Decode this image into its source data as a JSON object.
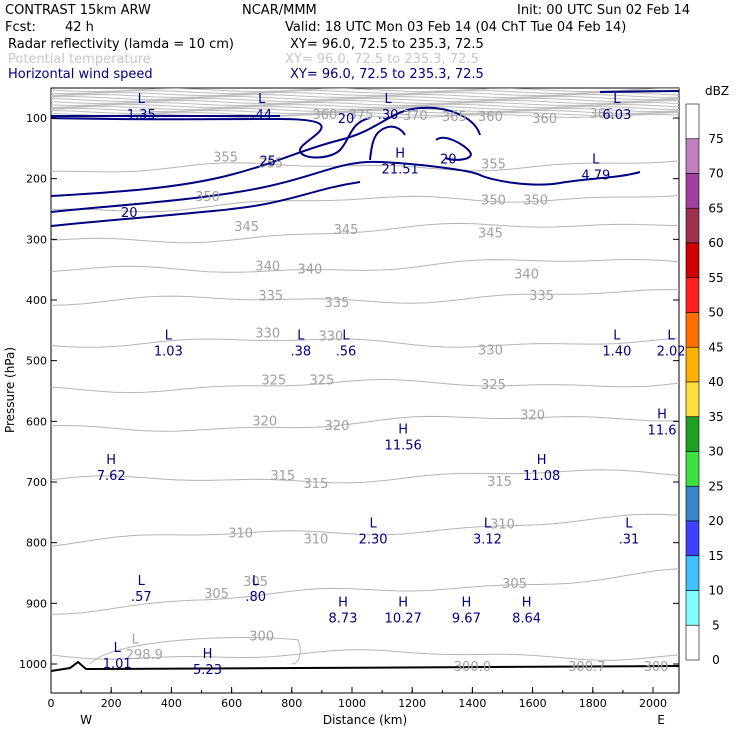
{
  "header": {
    "model": "CONTRAST 15km ARW",
    "org": "NCAR/MMM",
    "init": "Init: 00 UTC Sun 02 Feb 14",
    "fcst_label": "Fcst:",
    "fcst_value": "42 h",
    "valid": "Valid: 18 UTC Mon 03 Feb 14 (04 ChT Tue 04 Feb 14)",
    "fields": [
      {
        "name": "Radar reflectivity (lamda = 10 cm)",
        "xy": "XY=  96.0, 72.5 to 235.3, 72.5",
        "color": "#000000"
      },
      {
        "name": "Potential temperature",
        "xy": "XY=  96.0, 72.5 to 235.3, 72.5",
        "color": "#c8c8c8"
      },
      {
        "name": "Horizontal wind speed",
        "xy": "XY=  96.0, 72.5 to 235.3, 72.5",
        "color": "#000080"
      }
    ]
  },
  "chart_data": {
    "type": "cross-section",
    "xlabel": "Distance (km)",
    "ylabel": "Pressure (hPa)",
    "x_ticks": [
      0,
      200,
      400,
      600,
      800,
      1000,
      1200,
      1400,
      1600,
      1800,
      2000
    ],
    "y_ticks": [
      100,
      200,
      300,
      400,
      500,
      600,
      700,
      800,
      900,
      1000
    ],
    "xlim": [
      0,
      2080
    ],
    "ylim": [
      1050,
      50
    ],
    "ends": {
      "left": "W",
      "right": "E"
    },
    "theta_contours": [
      {
        "value": "300",
        "p_left": 985,
        "p_right": 985
      },
      {
        "value": "305",
        "p_left": 910,
        "p_right": 850
      },
      {
        "value": "310",
        "p_left": 800,
        "p_right": 760
      },
      {
        "value": "315",
        "p_left": 700,
        "p_right": 685
      },
      {
        "value": "320",
        "p_left": 615,
        "p_right": 590
      },
      {
        "value": "325",
        "p_left": 545,
        "p_right": 535
      },
      {
        "value": "330",
        "p_left": 470,
        "p_right": 470
      },
      {
        "value": "335",
        "p_left": 405,
        "p_right": 390
      },
      {
        "value": "340",
        "p_left": 355,
        "p_right": 335
      },
      {
        "value": "345",
        "p_left": 305,
        "p_right": 270
      },
      {
        "value": "350",
        "p_left": 250,
        "p_right": 225
      },
      {
        "value": "355",
        "p_left": 185,
        "p_right": 175
      }
    ],
    "theta_labels": [
      {
        "text": "300",
        "x": 700,
        "p": 955
      },
      {
        "text": "305",
        "x": 680,
        "p": 865
      },
      {
        "text": "305",
        "x": 550,
        "p": 885
      },
      {
        "text": "305",
        "x": 1540,
        "p": 868
      },
      {
        "text": "310",
        "x": 630,
        "p": 785
      },
      {
        "text": "310",
        "x": 880,
        "p": 795
      },
      {
        "text": "310",
        "x": 1500,
        "p": 770
      },
      {
        "text": "315",
        "x": 770,
        "p": 690
      },
      {
        "text": "315",
        "x": 880,
        "p": 703
      },
      {
        "text": "315",
        "x": 1490,
        "p": 700
      },
      {
        "text": "320",
        "x": 710,
        "p": 600
      },
      {
        "text": "320",
        "x": 950,
        "p": 608
      },
      {
        "text": "320",
        "x": 1600,
        "p": 590
      },
      {
        "text": "325",
        "x": 740,
        "p": 533
      },
      {
        "text": "325",
        "x": 900,
        "p": 533
      },
      {
        "text": "325",
        "x": 1470,
        "p": 540
      },
      {
        "text": "330",
        "x": 720,
        "p": 455
      },
      {
        "text": "330",
        "x": 930,
        "p": 460
      },
      {
        "text": "330",
        "x": 1460,
        "p": 483
      },
      {
        "text": "335",
        "x": 730,
        "p": 393
      },
      {
        "text": "335",
        "x": 950,
        "p": 405
      },
      {
        "text": "335",
        "x": 1630,
        "p": 393
      },
      {
        "text": "340",
        "x": 720,
        "p": 345
      },
      {
        "text": "340",
        "x": 860,
        "p": 350
      },
      {
        "text": "340",
        "x": 1580,
        "p": 358
      },
      {
        "text": "345",
        "x": 650,
        "p": 280
      },
      {
        "text": "345",
        "x": 980,
        "p": 285
      },
      {
        "text": "345",
        "x": 1460,
        "p": 290
      },
      {
        "text": "350",
        "x": 520,
        "p": 230
      },
      {
        "text": "350",
        "x": 1470,
        "p": 236
      },
      {
        "text": "350",
        "x": 1610,
        "p": 236
      },
      {
        "text": "355",
        "x": 580,
        "p": 165
      },
      {
        "text": "355",
        "x": 730,
        "p": 175
      },
      {
        "text": "355",
        "x": 1470,
        "p": 177
      },
      {
        "text": "360",
        "x": 910,
        "p": 95
      },
      {
        "text": "365",
        "x": 1340,
        "p": 98
      },
      {
        "text": "360",
        "x": 1460,
        "p": 98
      },
      {
        "text": "360",
        "x": 1640,
        "p": 102
      },
      {
        "text": "365",
        "x": 1830,
        "p": 93
      },
      {
        "text": "370",
        "x": 1210,
        "p": 97
      },
      {
        "text": "375",
        "x": 1030,
        "p": 95
      },
      {
        "text": "300.0",
        "x": 1400,
        "p": 1005
      },
      {
        "text": "300.7",
        "x": 1780,
        "p": 1005
      },
      {
        "text": "300",
        "x": 2010,
        "p": 1005
      },
      {
        "text": "L",
        "x": 280,
        "p": 960
      },
      {
        "text": "298.9",
        "x": 310,
        "p": 985
      }
    ],
    "wind_contours": [
      {
        "value": "20",
        "label_x": 260,
        "label_p": 255
      },
      {
        "value": "25",
        "label_x": 720,
        "label_p": 170
      },
      {
        "value": "20",
        "label_x": 1320,
        "label_p": 167
      },
      {
        "value": "20",
        "label_x": 980,
        "label_p": 100
      }
    ],
    "extrema": [
      {
        "type": "L",
        "value": "1.35",
        "x": 300,
        "p": 85
      },
      {
        "type": "L",
        "value": ".44",
        "x": 700,
        "p": 85
      },
      {
        "type": "L",
        "value": ".30",
        "x": 1120,
        "p": 85
      },
      {
        "type": "L",
        "value": "6.03",
        "x": 1880,
        "p": 85
      },
      {
        "type": "H",
        "value": "21.51",
        "x": 1160,
        "p": 175
      },
      {
        "type": "L",
        "value": "4.79",
        "x": 1810,
        "p": 185
      },
      {
        "type": "L",
        "value": "1.03",
        "x": 390,
        "p": 475
      },
      {
        "type": "L",
        "value": ".38",
        "x": 830,
        "p": 475
      },
      {
        "type": "L",
        "value": ".56",
        "x": 980,
        "p": 475
      },
      {
        "type": "L",
        "value": "1.40",
        "x": 1880,
        "p": 475
      },
      {
        "type": "L",
        "value": "2.02",
        "x": 2060,
        "p": 475
      },
      {
        "type": "H",
        "value": "11.6",
        "x": 2030,
        "p": 605
      },
      {
        "type": "H",
        "value": "11.56",
        "x": 1170,
        "p": 630
      },
      {
        "type": "H",
        "value": "7.62",
        "x": 200,
        "p": 680
      },
      {
        "type": "H",
        "value": "11.08",
        "x": 1630,
        "p": 680
      },
      {
        "type": "L",
        "value": "2.30",
        "x": 1070,
        "p": 785
      },
      {
        "type": "L",
        "value": "3.12",
        "x": 1450,
        "p": 785
      },
      {
        "type": "L",
        "value": ".31",
        "x": 1920,
        "p": 785
      },
      {
        "type": "L",
        "value": ".57",
        "x": 300,
        "p": 880
      },
      {
        "type": "L",
        "value": ".80",
        "x": 680,
        "p": 880
      },
      {
        "type": "H",
        "value": "8.73",
        "x": 970,
        "p": 915
      },
      {
        "type": "H",
        "value": "10.27",
        "x": 1170,
        "p": 915
      },
      {
        "type": "H",
        "value": "9.67",
        "x": 1380,
        "p": 915
      },
      {
        "type": "H",
        "value": "8.64",
        "x": 1580,
        "p": 915
      },
      {
        "type": "L",
        "value": "1.01",
        "x": 220,
        "p": 990
      },
      {
        "type": "H",
        "value": "5.23",
        "x": 520,
        "p": 1000
      }
    ],
    "colorbar": {
      "unit": "dBZ",
      "levels": [
        "5",
        "10",
        "15",
        "20",
        "25",
        "30",
        "35",
        "40",
        "45",
        "50",
        "55",
        "60",
        "65",
        "70",
        "75"
      ],
      "colors": [
        "#ffffff",
        "#80ffff",
        "#40c0ff",
        "#4040ff",
        "#3a84c8",
        "#40e040",
        "#20a020",
        "#ffe040",
        "#ffb000",
        "#ff7000",
        "#ff2020",
        "#d00000",
        "#a03050",
        "#a040a0",
        "#c080c0",
        "#ffffff"
      ]
    },
    "surface_p": 1005,
    "theta_color": "#a0a0a0",
    "wind_color": "#000080"
  }
}
